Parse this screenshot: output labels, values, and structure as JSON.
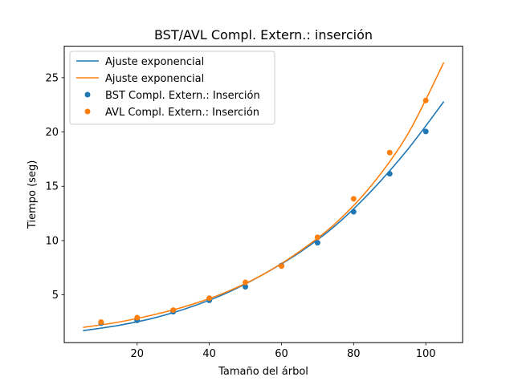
{
  "chart_data": {
    "type": "scatter",
    "title": "BST/AVL Compl. Extern.: inserción",
    "xlabel": "Tamaño del árbol",
    "ylabel": "Tiempo (seg)",
    "xlim": [
      -0.2,
      110.2
    ],
    "ylim": [
      0.6,
      27.9
    ],
    "xticks": [
      20,
      40,
      60,
      80,
      100
    ],
    "yticks": [
      5,
      10,
      15,
      20,
      25
    ],
    "grid": false,
    "legend_position": "top-left",
    "legend": [
      "Ajuste exponencial",
      "Ajuste exponencial",
      "BST Compl. Extern.: Inserción",
      "AVL Compl. Extern.: Inserción"
    ],
    "series": [
      {
        "name": "BST Compl. Extern.: Inserción",
        "kind": "scatter",
        "color": "#1f77b4",
        "x": [
          10,
          20,
          30,
          40,
          50,
          60,
          70,
          80,
          90,
          100
        ],
        "y": [
          2.4,
          2.65,
          3.45,
          4.5,
          5.75,
          7.7,
          9.8,
          12.65,
          16.15,
          20.05
        ]
      },
      {
        "name": "AVL Compl. Extern.: Inserción",
        "kind": "scatter",
        "color": "#ff7f0e",
        "x": [
          10,
          20,
          30,
          40,
          50,
          60,
          70,
          80,
          90,
          100
        ],
        "y": [
          2.5,
          2.9,
          3.6,
          4.7,
          6.15,
          7.65,
          10.3,
          13.85,
          18.1,
          22.9
        ]
      },
      {
        "name": "Ajuste exponencial",
        "kind": "line",
        "color": "#1f77b4",
        "x": [
          5,
          15,
          25,
          35,
          45,
          55,
          65,
          75,
          85,
          95,
          105
        ],
        "y": [
          1.7,
          2.2,
          2.9,
          3.9,
          5.2,
          6.9,
          8.9,
          11.4,
          14.6,
          18.4,
          22.8
        ]
      },
      {
        "name": "Ajuste exponencial",
        "kind": "line",
        "color": "#ff7f0e",
        "x": [
          5,
          15,
          25,
          35,
          45,
          55,
          65,
          75,
          85,
          95,
          105
        ],
        "y": [
          2.0,
          2.5,
          3.2,
          4.1,
          5.3,
          6.9,
          9.0,
          11.6,
          15.1,
          19.8,
          26.4
        ]
      }
    ]
  }
}
